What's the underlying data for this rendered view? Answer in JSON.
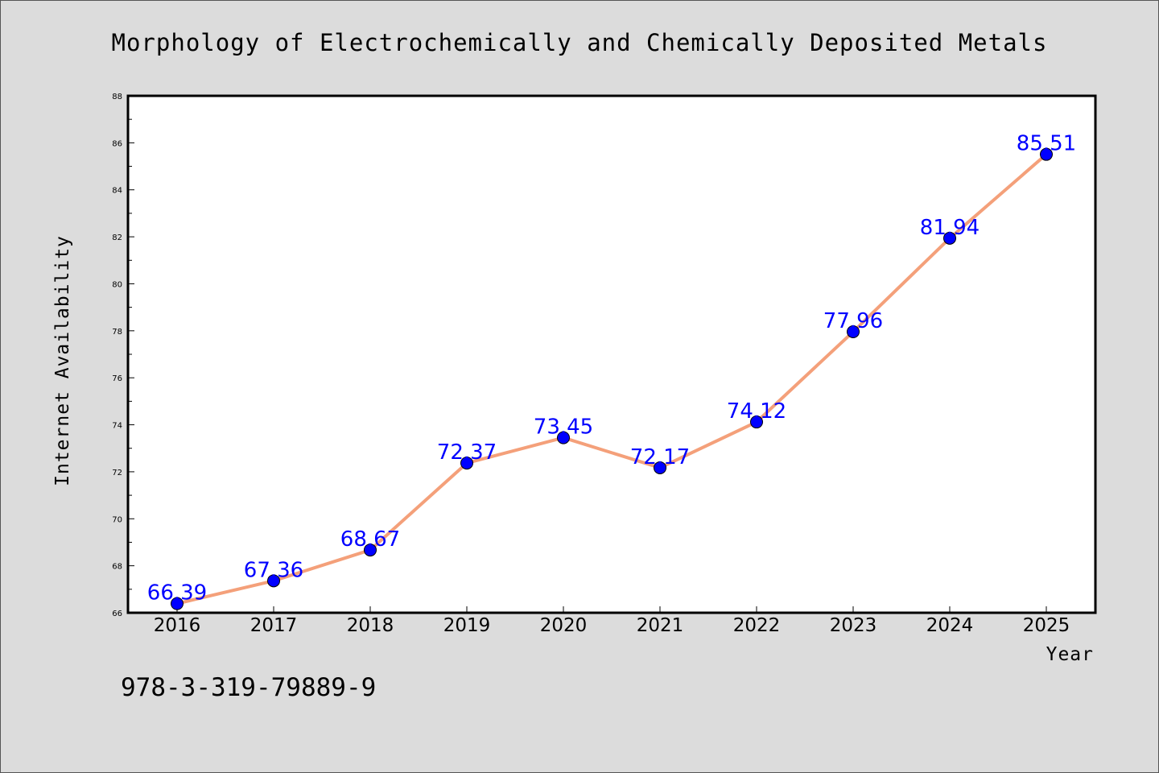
{
  "chart_data": {
    "type": "line",
    "title": "Morphology of Electrochemically and Chemically Deposited Metals",
    "xlabel": "Year",
    "ylabel": "Internet Availability",
    "categories": [
      "2016",
      "2017",
      "2018",
      "2019",
      "2020",
      "2021",
      "2022",
      "2023",
      "2024",
      "2025"
    ],
    "series": [
      {
        "values": [
          66.39,
          67.36,
          68.67,
          72.37,
          73.45,
          72.17,
          74.12,
          77.96,
          81.94,
          85.51
        ],
        "labels": [
          "66.39",
          "67.36",
          "68.67",
          "72.37",
          "73.45",
          "72.17",
          "74.12",
          "77.96",
          "81.94",
          "85.51"
        ]
      }
    ],
    "ylim": [
      66,
      88
    ],
    "yticks": [
      "66",
      "68",
      "70",
      "72",
      "74",
      "76",
      "78",
      "80",
      "82",
      "84",
      "86",
      "88"
    ],
    "grid": false,
    "line_color": "#f4a07a",
    "marker_color": "#0000ff",
    "label_color": "#0000ff",
    "background": "#dcdcdc",
    "plot_background": "#ffffff"
  },
  "footer": {
    "isbn": "978-3-319-79889-9"
  }
}
